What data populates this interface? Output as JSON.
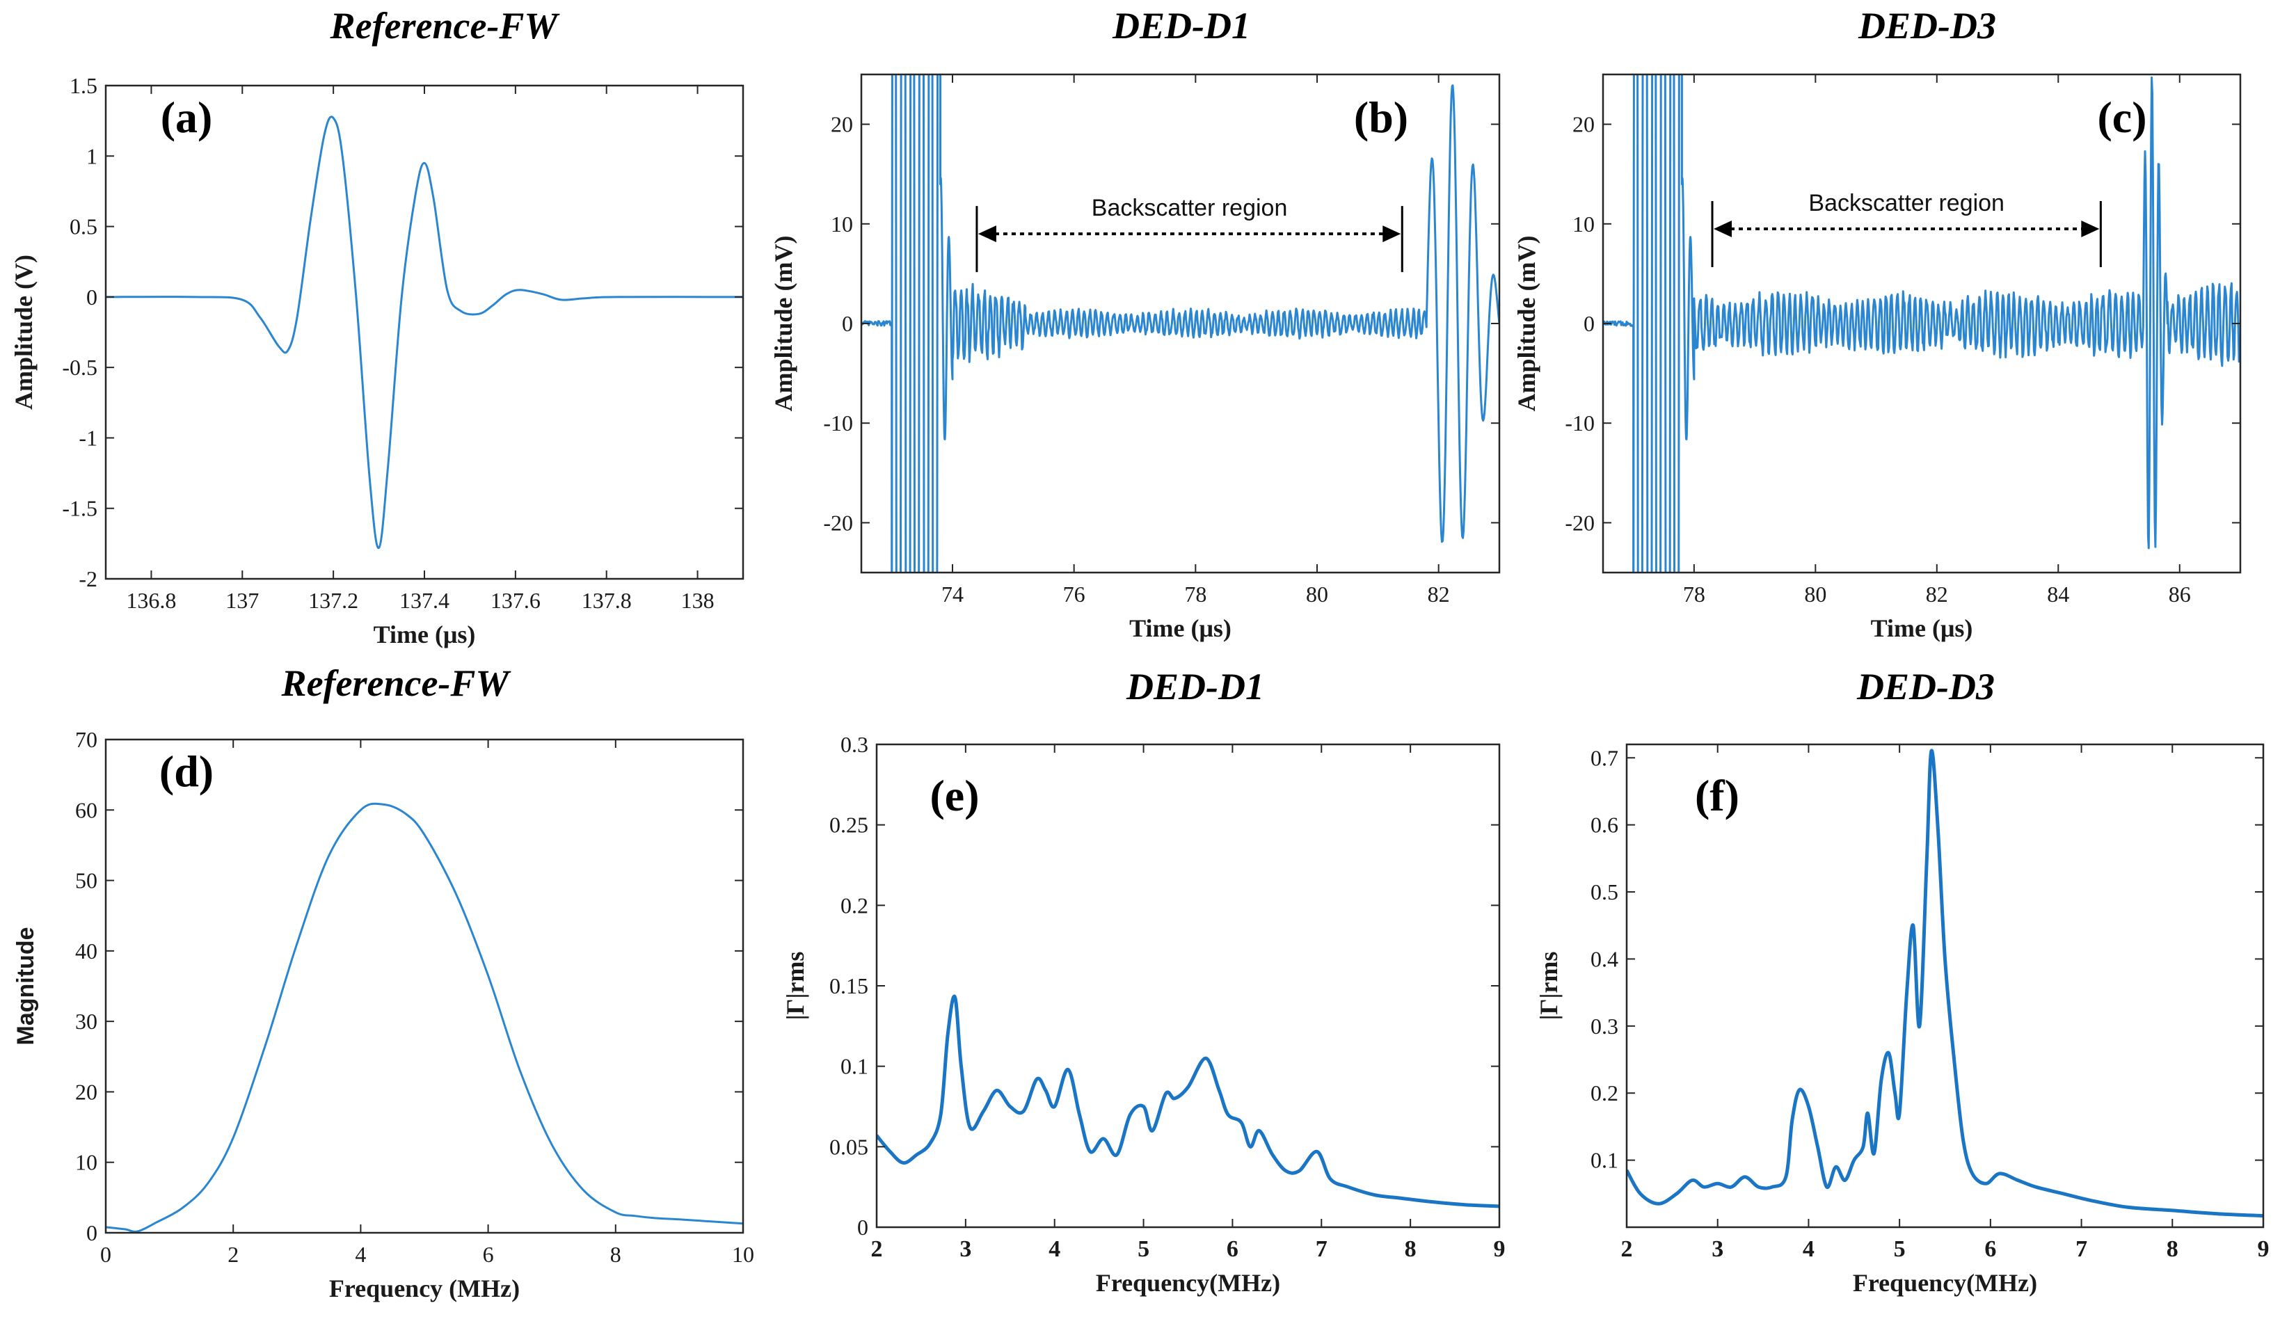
{
  "chart_data": [
    {
      "id": "a",
      "type": "line",
      "panel_label": "(a)",
      "title": "Reference-FW",
      "xlabel": "Time (μs)",
      "ylabel": "Amplitude (V)",
      "xlim": [
        136.7,
        138.1
      ],
      "ylim": [
        -2,
        1.5
      ],
      "xticks": [
        136.8,
        137,
        137.2,
        137.4,
        137.6,
        137.8,
        138
      ],
      "xtick_labels": [
        "136.8",
        "137",
        "137.2",
        "137.4",
        "137.6",
        "137.8",
        "138"
      ],
      "yticks": [
        -2,
        -1.5,
        -1,
        -0.5,
        0,
        0.5,
        1,
        1.5
      ],
      "ytick_labels": [
        "-2",
        "-1.5",
        "-1",
        "-0.5",
        "0",
        "0.5",
        "1",
        "1.5"
      ],
      "series": [
        {
          "name": "Reference-FW waveform",
          "x": [
            136.7,
            136.9,
            137.0,
            137.04,
            137.08,
            137.1,
            137.12,
            137.15,
            137.18,
            137.2,
            137.22,
            137.25,
            137.28,
            137.3,
            137.32,
            137.35,
            137.38,
            137.4,
            137.42,
            137.45,
            137.48,
            137.52,
            137.55,
            137.58,
            137.61,
            137.66,
            137.7,
            137.75,
            137.82,
            138.1
          ],
          "y": [
            0,
            0,
            -0.02,
            -0.15,
            -0.35,
            -0.38,
            -0.15,
            0.55,
            1.15,
            1.27,
            1.0,
            0.0,
            -1.3,
            -1.78,
            -1.2,
            0.0,
            0.72,
            0.95,
            0.7,
            0.05,
            -0.1,
            -0.12,
            -0.06,
            0.02,
            0.05,
            0.02,
            -0.02,
            -0.01,
            0,
            0
          ]
        }
      ]
    },
    {
      "id": "b",
      "type": "line",
      "panel_label": "(b)",
      "title": "DED-D1",
      "xlabel": "Time (μs)",
      "ylabel": "Amplitude (mV)",
      "xlim": [
        72.5,
        83
      ],
      "ylim": [
        -25,
        25
      ],
      "xticks": [
        74,
        76,
        78,
        80,
        82
      ],
      "xtick_labels": [
        "74",
        "76",
        "78",
        "80",
        "82"
      ],
      "yticks": [
        -20,
        -10,
        0,
        10,
        20
      ],
      "ytick_labels": [
        "-20",
        "-10",
        "0",
        "10",
        "20"
      ],
      "annotation": {
        "text": "Backscatter region",
        "x_start": 74.4,
        "x_end": 81.4,
        "y": 9
      },
      "series": [
        {
          "name": "DED-D1 waveform",
          "segments": [
            {
              "x_start": 72.5,
              "x_end": 73.0,
              "kind": "flat",
              "amplitude": 0.5
            },
            {
              "x_start": 73.0,
              "x_end": 73.8,
              "kind": "saturated",
              "period": 0.15
            },
            {
              "x_start": 73.8,
              "x_end": 74.0,
              "kind": "transient",
              "amplitude": 15
            },
            {
              "x_start": 74.0,
              "x_end": 75.2,
              "kind": "backscatter",
              "amplitude": 3.5
            },
            {
              "x_start": 75.2,
              "x_end": 81.8,
              "kind": "backscatter",
              "amplitude": 1.3
            },
            {
              "x_start": 81.8,
              "x_end": 83.0,
              "kind": "echo",
              "amplitude": 24
            }
          ]
        }
      ]
    },
    {
      "id": "c",
      "type": "line",
      "panel_label": "(c)",
      "title": "DED-D3",
      "xlabel": "Time (μs)",
      "ylabel": "Amplitude (mV)",
      "xlim": [
        76.5,
        87
      ],
      "ylim": [
        -25,
        25
      ],
      "xticks": [
        78,
        80,
        82,
        84,
        86
      ],
      "xtick_labels": [
        "78",
        "80",
        "82",
        "84",
        "86"
      ],
      "yticks": [
        -20,
        -10,
        0,
        10,
        20
      ],
      "ytick_labels": [
        "-20",
        "-10",
        "0",
        "10",
        "20"
      ],
      "annotation": {
        "text": "Backscatter region",
        "x_start": 78.3,
        "x_end": 84.7,
        "y": 9.5
      },
      "series": [
        {
          "name": "DED-D3 waveform",
          "segments": [
            {
              "x_start": 76.5,
              "x_end": 77.0,
              "kind": "flat",
              "amplitude": 0.5
            },
            {
              "x_start": 77.0,
              "x_end": 77.8,
              "kind": "saturated",
              "period": 0.15
            },
            {
              "x_start": 77.8,
              "x_end": 78.0,
              "kind": "transient",
              "amplitude": 15
            },
            {
              "x_start": 78.0,
              "x_end": 85.4,
              "kind": "backscatter",
              "amplitude": 3.0
            },
            {
              "x_start": 85.4,
              "x_end": 85.8,
              "kind": "echo",
              "amplitude": 25
            },
            {
              "x_start": 85.8,
              "x_end": 87.0,
              "kind": "backscatter",
              "amplitude": 4.0
            }
          ]
        }
      ]
    },
    {
      "id": "d",
      "type": "line",
      "panel_label": "(d)",
      "title": "Reference-FW",
      "xlabel": "Frequency (MHz)",
      "ylabel": "Magnitude",
      "xlim": [
        0,
        10
      ],
      "ylim": [
        0,
        70
      ],
      "xticks": [
        0,
        2,
        4,
        6,
        8,
        10
      ],
      "xtick_labels": [
        "0",
        "2",
        "4",
        "6",
        "8",
        "10"
      ],
      "yticks": [
        0,
        10,
        20,
        30,
        40,
        50,
        60,
        70
      ],
      "ytick_labels": [
        "0",
        "10",
        "20",
        "30",
        "40",
        "50",
        "60",
        "70"
      ],
      "series": [
        {
          "name": "Reference-FW spectrum",
          "x": [
            0,
            0.3,
            0.5,
            0.8,
            1.2,
            1.6,
            2.0,
            2.5,
            3.0,
            3.5,
            4.0,
            4.35,
            4.7,
            5.0,
            5.5,
            6.0,
            6.5,
            7.0,
            7.5,
            8.0,
            8.3,
            8.6,
            9.0,
            9.5,
            10
          ],
          "y": [
            0.8,
            0.5,
            0.2,
            1.5,
            3.5,
            7.0,
            13.5,
            26.5,
            41.0,
            53.5,
            60.0,
            60.8,
            59.5,
            56.5,
            48.0,
            36.5,
            23.0,
            12.5,
            6.0,
            2.9,
            2.4,
            2.1,
            1.9,
            1.6,
            1.3
          ]
        }
      ]
    },
    {
      "id": "e",
      "type": "line",
      "panel_label": "(e)",
      "title": "DED-D1",
      "xlabel": "Frequency(MHz)",
      "ylabel": "|Γ|rms",
      "xlim": [
        2,
        9
      ],
      "ylim": [
        0,
        0.3
      ],
      "xticks": [
        2,
        3,
        4,
        5,
        6,
        7,
        8,
        9
      ],
      "xtick_labels": [
        "2",
        "3",
        "4",
        "5",
        "6",
        "7",
        "8",
        "9"
      ],
      "yticks": [
        0,
        0.05,
        0.1,
        0.15,
        0.2,
        0.25,
        0.3
      ],
      "ytick_labels": [
        "0",
        "0.05",
        "0.1",
        "0.15",
        "0.2",
        "0.25",
        "0.3"
      ],
      "series": [
        {
          "name": "DED-D1 |Γ|rms",
          "x": [
            2.0,
            2.15,
            2.3,
            2.45,
            2.6,
            2.72,
            2.8,
            2.88,
            2.95,
            3.05,
            3.2,
            3.35,
            3.5,
            3.65,
            3.8,
            3.9,
            4.0,
            4.15,
            4.28,
            4.4,
            4.55,
            4.7,
            4.85,
            5.0,
            5.1,
            5.25,
            5.35,
            5.5,
            5.7,
            5.85,
            5.95,
            6.1,
            6.2,
            6.3,
            6.45,
            6.6,
            6.75,
            6.95,
            7.1,
            7.3,
            7.6,
            7.9,
            8.2,
            8.6,
            9.0
          ],
          "y": [
            0.057,
            0.047,
            0.04,
            0.045,
            0.052,
            0.07,
            0.12,
            0.143,
            0.1,
            0.062,
            0.072,
            0.085,
            0.075,
            0.072,
            0.092,
            0.085,
            0.075,
            0.098,
            0.07,
            0.047,
            0.055,
            0.045,
            0.07,
            0.075,
            0.06,
            0.083,
            0.08,
            0.087,
            0.105,
            0.085,
            0.07,
            0.065,
            0.05,
            0.06,
            0.045,
            0.035,
            0.035,
            0.047,
            0.03,
            0.025,
            0.02,
            0.018,
            0.016,
            0.014,
            0.013
          ]
        }
      ]
    },
    {
      "id": "f",
      "type": "line",
      "panel_label": "(f)",
      "title": "DED-D3",
      "xlabel": "Frequency(MHz)",
      "ylabel": "|Γ|rms",
      "xlim": [
        2,
        9
      ],
      "ylim": [
        0,
        0.72
      ],
      "xticks": [
        2,
        3,
        4,
        5,
        6,
        7,
        8,
        9
      ],
      "xtick_labels": [
        "2",
        "3",
        "4",
        "5",
        "6",
        "7",
        "8",
        "9"
      ],
      "yticks": [
        0.1,
        0.2,
        0.3,
        0.4,
        0.5,
        0.6,
        0.7
      ],
      "ytick_labels": [
        "0.1",
        "0.2",
        "0.3",
        "0.4",
        "0.5",
        "0.6",
        "0.7"
      ],
      "series": [
        {
          "name": "DED-D3 |Γ|rms",
          "x": [
            2.0,
            2.15,
            2.35,
            2.55,
            2.72,
            2.85,
            3.0,
            3.15,
            3.3,
            3.45,
            3.6,
            3.75,
            3.82,
            3.9,
            4.0,
            4.1,
            4.2,
            4.3,
            4.4,
            4.5,
            4.6,
            4.65,
            4.72,
            4.8,
            4.88,
            4.95,
            5.0,
            5.08,
            5.15,
            5.22,
            5.3,
            5.35,
            5.42,
            5.5,
            5.6,
            5.7,
            5.8,
            5.95,
            6.1,
            6.3,
            6.5,
            6.8,
            7.1,
            7.5,
            8.0,
            8.5,
            9.0
          ],
          "y": [
            0.085,
            0.05,
            0.035,
            0.05,
            0.07,
            0.06,
            0.065,
            0.06,
            0.075,
            0.06,
            0.06,
            0.075,
            0.16,
            0.205,
            0.18,
            0.12,
            0.06,
            0.09,
            0.07,
            0.1,
            0.12,
            0.17,
            0.11,
            0.22,
            0.26,
            0.2,
            0.17,
            0.35,
            0.45,
            0.3,
            0.55,
            0.71,
            0.6,
            0.4,
            0.25,
            0.13,
            0.08,
            0.065,
            0.08,
            0.07,
            0.06,
            0.05,
            0.04,
            0.03,
            0.025,
            0.02,
            0.017
          ]
        }
      ]
    }
  ]
}
